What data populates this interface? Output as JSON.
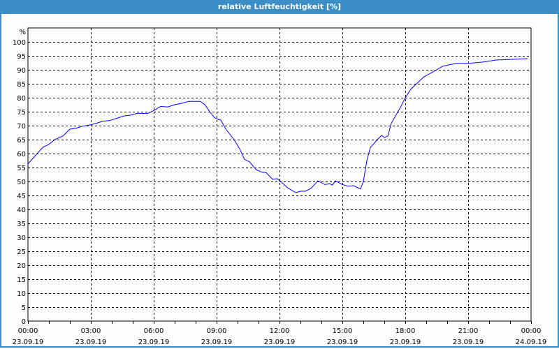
{
  "window": {
    "title": "relative Luftfeuchtigkeit [%]"
  },
  "colors": {
    "line": "#0000ff",
    "titlebar": "#3c8fc6",
    "grid": "#000000"
  },
  "chart_data": {
    "type": "line",
    "title": "relative Luftfeuchtigkeit [%]",
    "ylabel": "%",
    "xlabel": "",
    "ylim": [
      0,
      105
    ],
    "xlim_hours": [
      0,
      24
    ],
    "grid": true,
    "y_ticks": [
      0,
      5,
      10,
      15,
      20,
      25,
      30,
      35,
      40,
      45,
      50,
      55,
      60,
      65,
      70,
      75,
      80,
      85,
      90,
      95,
      100
    ],
    "x_ticks": [
      {
        "hour": 0,
        "time": "00:00",
        "date": "23.09.19"
      },
      {
        "hour": 3,
        "time": "03:00",
        "date": "23.09.19"
      },
      {
        "hour": 6,
        "time": "06:00",
        "date": "23.09.19"
      },
      {
        "hour": 9,
        "time": "09:00",
        "date": "23.09.19"
      },
      {
        "hour": 12,
        "time": "12:00",
        "date": "23.09.19"
      },
      {
        "hour": 15,
        "time": "15:00",
        "date": "23.09.19"
      },
      {
        "hour": 18,
        "time": "18:00",
        "date": "23.09.19"
      },
      {
        "hour": 21,
        "time": "21:00",
        "date": "23.09.19"
      },
      {
        "hour": 24,
        "time": "00:00",
        "date": "24.09.19"
      }
    ],
    "series": [
      {
        "name": "relative Luftfeuchtigkeit",
        "points_hour_value": [
          [
            0,
            56.3
          ],
          [
            0.44,
            60
          ],
          [
            0.72,
            62.3
          ],
          [
            1.0,
            63.3
          ],
          [
            1.28,
            65
          ],
          [
            1.67,
            66.3
          ],
          [
            2.0,
            68.75
          ],
          [
            2.27,
            69
          ],
          [
            2.6,
            69.8
          ],
          [
            3,
            70.3
          ],
          [
            3.33,
            71
          ],
          [
            3.56,
            71.6
          ],
          [
            3.89,
            71.8
          ],
          [
            4.22,
            72.6
          ],
          [
            4.6,
            73.5
          ],
          [
            4.89,
            73.75
          ],
          [
            5.22,
            74.4
          ],
          [
            5.72,
            74.4
          ],
          [
            6,
            75.4
          ],
          [
            6.33,
            76.9
          ],
          [
            6.67,
            76.7
          ],
          [
            7,
            77.5
          ],
          [
            7.39,
            78.1
          ],
          [
            7.67,
            78.7
          ],
          [
            8.22,
            78.7
          ],
          [
            8.44,
            77.5
          ],
          [
            8.67,
            75
          ],
          [
            8.89,
            72.9
          ],
          [
            9.11,
            72.1
          ],
          [
            9.2,
            72
          ],
          [
            9.44,
            68.75
          ],
          [
            9.83,
            65
          ],
          [
            10.1,
            61.7
          ],
          [
            10.33,
            57.9
          ],
          [
            10.56,
            57.1
          ],
          [
            10.89,
            54.2
          ],
          [
            11.17,
            53.3
          ],
          [
            11.36,
            53.2
          ],
          [
            11.67,
            50.8
          ],
          [
            11.89,
            51
          ],
          [
            12.06,
            50
          ],
          [
            12.39,
            47.7
          ],
          [
            12.78,
            46
          ],
          [
            13,
            46.5
          ],
          [
            13.22,
            46.5
          ],
          [
            13.5,
            47.5
          ],
          [
            13.83,
            50.2
          ],
          [
            14.17,
            48.9
          ],
          [
            14.39,
            49.2
          ],
          [
            14.52,
            48.7
          ],
          [
            14.67,
            50.2
          ],
          [
            15,
            48.9
          ],
          [
            15.28,
            48.3
          ],
          [
            15.53,
            48.5
          ],
          [
            15.86,
            47.3
          ],
          [
            16,
            50
          ],
          [
            16.17,
            57.5
          ],
          [
            16.33,
            62.1
          ],
          [
            16.67,
            65
          ],
          [
            16.87,
            66.5
          ],
          [
            17,
            65.8
          ],
          [
            17.17,
            66.25
          ],
          [
            17.33,
            70.8
          ],
          [
            17.78,
            76.7
          ],
          [
            18,
            80
          ],
          [
            18.28,
            83.2
          ],
          [
            18.89,
            87.5
          ],
          [
            19.33,
            89.3
          ],
          [
            19.78,
            91.25
          ],
          [
            20.1,
            91.8
          ],
          [
            20.44,
            92.3
          ],
          [
            21,
            92.3
          ],
          [
            21.67,
            92.75
          ],
          [
            22.33,
            93.5
          ],
          [
            23.1,
            93.75
          ],
          [
            23.83,
            94
          ]
        ]
      }
    ]
  }
}
